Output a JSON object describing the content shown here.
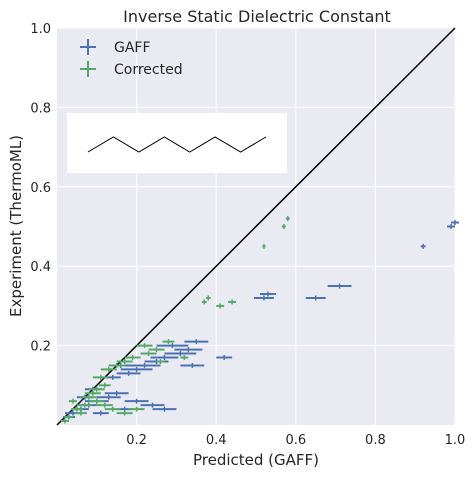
{
  "chart_data": {
    "type": "scatter",
    "title": "Inverse Static Dielectric Constant",
    "xlabel": "Predicted (GAFF)",
    "ylabel": "Experiment (ThermoML)",
    "xlim": [
      0,
      1
    ],
    "ylim": [
      0,
      1
    ],
    "xticks": [
      "0.2",
      "0.4",
      "0.6",
      "0.8",
      "1.0"
    ],
    "yticks": [
      "0.2",
      "0.4",
      "0.6",
      "0.8",
      "1.0"
    ],
    "grid": true,
    "legend": "top-left",
    "reference_line": [
      [
        0,
        0
      ],
      [
        1,
        1
      ]
    ],
    "inset": {
      "type": "zigzag molecule",
      "points": 8
    },
    "colors": {
      "background": "#eaeaf2",
      "GAFF": "#4c72b0",
      "Corrected": "#55a868",
      "line": "#000000"
    },
    "series": [
      {
        "name": "GAFF",
        "color": "#4c72b0",
        "points": [
          [
            1.0,
            0.51,
            0.01
          ],
          [
            0.99,
            0.5,
            0.01
          ],
          [
            0.92,
            0.45,
            0.006
          ],
          [
            0.71,
            0.35,
            0.03
          ],
          [
            0.65,
            0.32,
            0.025
          ],
          [
            0.53,
            0.33,
            0.02
          ],
          [
            0.52,
            0.32,
            0.025
          ],
          [
            0.42,
            0.17,
            0.02
          ],
          [
            0.34,
            0.15,
            0.03
          ],
          [
            0.33,
            0.19,
            0.035
          ],
          [
            0.35,
            0.21,
            0.03
          ],
          [
            0.31,
            0.18,
            0.04
          ],
          [
            0.29,
            0.2,
            0.04
          ],
          [
            0.27,
            0.17,
            0.035
          ],
          [
            0.25,
            0.16,
            0.03
          ],
          [
            0.22,
            0.15,
            0.04
          ],
          [
            0.2,
            0.14,
            0.04
          ],
          [
            0.18,
            0.13,
            0.03
          ],
          [
            0.16,
            0.15,
            0.03
          ],
          [
            0.14,
            0.12,
            0.02
          ],
          [
            0.27,
            0.04,
            0.03
          ],
          [
            0.24,
            0.05,
            0.03
          ],
          [
            0.2,
            0.06,
            0.03
          ],
          [
            0.15,
            0.08,
            0.03
          ],
          [
            0.13,
            0.07,
            0.03
          ],
          [
            0.1,
            0.06,
            0.03
          ],
          [
            0.08,
            0.05,
            0.02
          ],
          [
            0.06,
            0.04,
            0.02
          ],
          [
            0.04,
            0.03,
            0.02
          ],
          [
            0.11,
            0.03,
            0.02
          ],
          [
            0.17,
            0.04,
            0.02
          ],
          [
            0.03,
            0.02,
            0.015
          ],
          [
            0.07,
            0.07,
            0.02
          ],
          [
            0.09,
            0.09,
            0.02
          ]
        ]
      },
      {
        "name": "Corrected",
        "color": "#55a868",
        "points": [
          [
            0.58,
            0.52,
            0.005
          ],
          [
            0.57,
            0.5,
            0.005
          ],
          [
            0.52,
            0.45,
            0.004
          ],
          [
            0.38,
            0.32,
            0.006
          ],
          [
            0.37,
            0.31,
            0.006
          ],
          [
            0.44,
            0.31,
            0.01
          ],
          [
            0.41,
            0.3,
            0.01
          ],
          [
            0.32,
            0.17,
            0.01
          ],
          [
            0.26,
            0.16,
            0.01
          ],
          [
            0.25,
            0.19,
            0.02
          ],
          [
            0.28,
            0.21,
            0.015
          ],
          [
            0.23,
            0.18,
            0.02
          ],
          [
            0.22,
            0.2,
            0.02
          ],
          [
            0.19,
            0.17,
            0.02
          ],
          [
            0.17,
            0.16,
            0.02
          ],
          [
            0.15,
            0.15,
            0.02
          ],
          [
            0.13,
            0.14,
            0.02
          ],
          [
            0.11,
            0.12,
            0.02
          ],
          [
            0.12,
            0.1,
            0.015
          ],
          [
            0.2,
            0.04,
            0.02
          ],
          [
            0.17,
            0.03,
            0.02
          ],
          [
            0.14,
            0.04,
            0.02
          ],
          [
            0.12,
            0.05,
            0.02
          ],
          [
            0.1,
            0.06,
            0.02
          ],
          [
            0.09,
            0.08,
            0.02
          ],
          [
            0.07,
            0.05,
            0.02
          ],
          [
            0.05,
            0.04,
            0.015
          ],
          [
            0.03,
            0.02,
            0.01
          ],
          [
            0.02,
            0.01,
            0.01
          ],
          [
            0.06,
            0.03,
            0.015
          ],
          [
            0.08,
            0.07,
            0.02
          ],
          [
            0.04,
            0.06,
            0.01
          ],
          [
            0.1,
            0.09,
            0.02
          ]
        ]
      }
    ]
  }
}
